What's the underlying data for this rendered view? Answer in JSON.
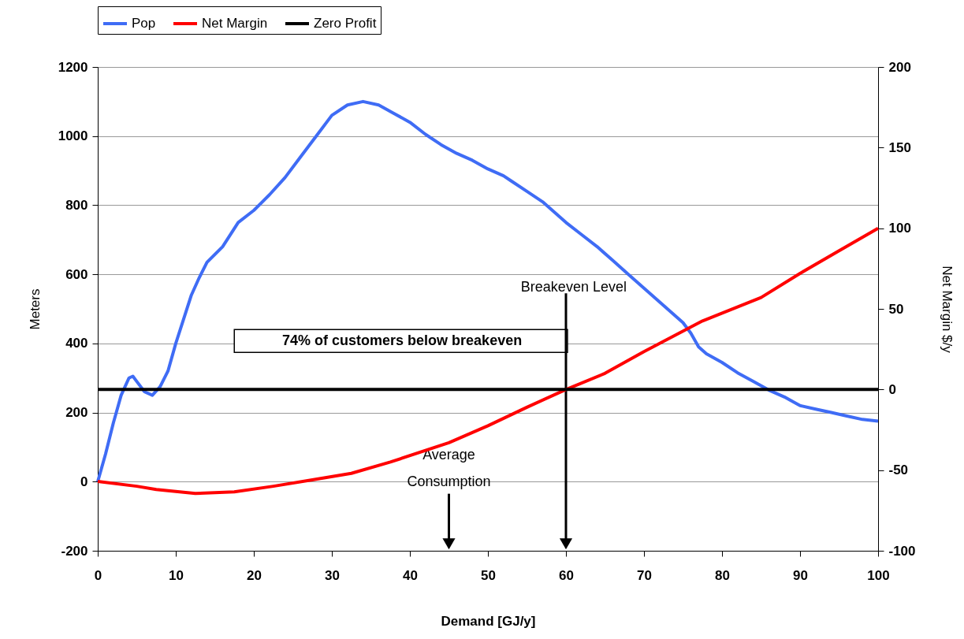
{
  "chart_data": {
    "type": "line",
    "xlabel": "Demand [GJ/y]",
    "ylabel": "Meters",
    "y2label": "Net Margin $/y",
    "xlim": [
      0,
      100
    ],
    "xticks": [
      0,
      10,
      20,
      30,
      40,
      50,
      60,
      70,
      80,
      90,
      100
    ],
    "ylim": [
      -200,
      1200
    ],
    "yticks": [
      -200,
      0,
      200,
      400,
      600,
      800,
      1000,
      1200
    ],
    "y2lim": [
      -100,
      200
    ],
    "y2ticks": [
      -100,
      -50,
      0,
      50,
      100,
      150,
      200
    ],
    "grid": "y",
    "legend": "top",
    "annotations": [
      "74% of customers below breakeven",
      "Breakeven Level",
      "Average Consumption"
    ],
    "series": [
      {
        "name": "Pop",
        "color": "#3f6cf5",
        "x": [
          0,
          1,
          2,
          3,
          4,
          4.5,
          5,
          6,
          7,
          8,
          9,
          10,
          11,
          12,
          13,
          14,
          16,
          18,
          20,
          22,
          24,
          26,
          28,
          30,
          32,
          34,
          36,
          38,
          40,
          42,
          44,
          46,
          48,
          50,
          52,
          53,
          55,
          57,
          58,
          60,
          62,
          64,
          66,
          68,
          70,
          72,
          74,
          75,
          76,
          77,
          78,
          80,
          82,
          84,
          86,
          88,
          90,
          92,
          94,
          96,
          98,
          100
        ],
        "values": [
          0,
          80,
          170,
          250,
          300,
          305,
          290,
          260,
          250,
          275,
          320,
          400,
          470,
          540,
          590,
          635,
          680,
          750,
          785,
          830,
          880,
          940,
          1000,
          1060,
          1090,
          1100,
          1090,
          1065,
          1040,
          1005,
          975,
          950,
          930,
          905,
          885,
          870,
          840,
          810,
          790,
          750,
          715,
          680,
          640,
          600,
          560,
          520,
          480,
          460,
          430,
          390,
          370,
          345,
          315,
          290,
          265,
          245,
          220,
          210,
          200,
          190,
          180,
          175
        ]
      },
      {
        "name": "Net Margin",
        "color": "#ff0000",
        "axis": "y2",
        "x": [
          0,
          5,
          7.5,
          12.5,
          17.5,
          22.5,
          27.5,
          32.5,
          37.5,
          45,
          50,
          55,
          60,
          65,
          70,
          77.5,
          85,
          90,
          95,
          100
        ],
        "values": [
          -57,
          -60,
          -62,
          -64.5,
          -63.5,
          -60,
          -56,
          -52,
          -45,
          -33,
          -22.5,
          -11,
          0,
          10,
          23.5,
          42.5,
          57,
          72,
          86,
          100
        ]
      },
      {
        "name": "Zero Profit",
        "color": "#000000",
        "axis": "y2",
        "x": [
          0,
          100
        ],
        "values": [
          0,
          0
        ]
      }
    ]
  }
}
